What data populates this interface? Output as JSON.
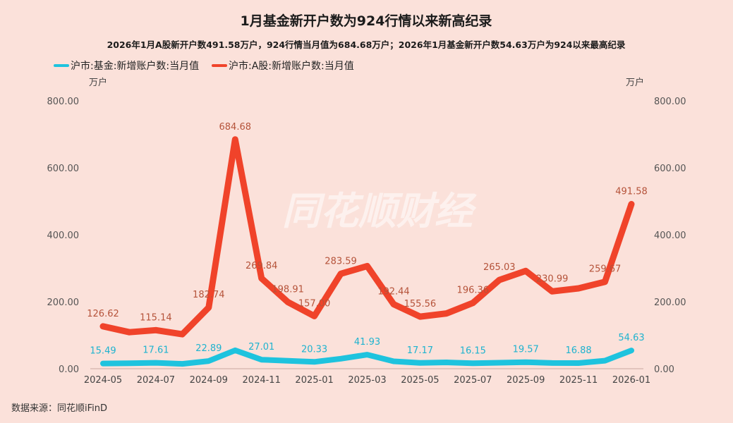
{
  "title": "1月基金新开户数为924行情以来新高纪录",
  "subtitle": "2026年1月A股新开户数491.58万户，924行情当月值为684.68万户；2026年1月基金新开户数54.63万户为924以来最高纪录",
  "units": {
    "left": "万户",
    "right": "万户"
  },
  "source": "数据来源：同花顺iFinD",
  "watermark": "同花顺财经",
  "colors": {
    "background": "#fbe1da",
    "fund": "#1ec3de",
    "ashare": "#f0432a",
    "fund_label": "#1eb3cf",
    "ashare_label": "#b5533a"
  },
  "chart_data": {
    "type": "line",
    "title": "1月基金新开户数为924行情以来新高纪录",
    "x": [
      "2024-05",
      "2024-06",
      "2024-07",
      "2024-08",
      "2024-09",
      "2024-10",
      "2024-11",
      "2024-12",
      "2025-01",
      "2025-02",
      "2025-03",
      "2025-04",
      "2025-05",
      "2025-06",
      "2025-07",
      "2025-08",
      "2025-09",
      "2025-10",
      "2025-11",
      "2025-12",
      "2026-01"
    ],
    "x_tick_labels": [
      "2024-05",
      "2024-07",
      "2024-09",
      "2024-11",
      "2025-01",
      "2025-03",
      "2025-05",
      "2025-07",
      "2025-09",
      "2025-11",
      "2026-01"
    ],
    "y_tick_labels": [
      "800.00",
      "600.00",
      "400.00",
      "200.00",
      "0.00"
    ],
    "ylim": [
      0,
      800
    ],
    "legend_position": "top-left",
    "series": [
      {
        "name": "沪市:基金:新增账户数:当月值",
        "color": "#1ec3de",
        "values": [
          15.49,
          16.5,
          17.61,
          14.5,
          22.89,
          55.0,
          27.01,
          23.5,
          20.33,
          30.0,
          41.93,
          22.0,
          17.17,
          19.0,
          16.15,
          18.0,
          19.57,
          17.0,
          16.88,
          24.0,
          54.63
        ],
        "data_labels": [
          {
            "i": 0,
            "text": "15.49"
          },
          {
            "i": 2,
            "text": "17.61"
          },
          {
            "i": 4,
            "text": "22.89"
          },
          {
            "i": 6,
            "text": "27.01"
          },
          {
            "i": 8,
            "text": "20.33"
          },
          {
            "i": 10,
            "text": "41.93"
          },
          {
            "i": 12,
            "text": "17.17"
          },
          {
            "i": 14,
            "text": "16.15"
          },
          {
            "i": 16,
            "text": "19.57"
          },
          {
            "i": 18,
            "text": "16.88"
          },
          {
            "i": 20,
            "text": "54.63"
          }
        ]
      },
      {
        "name": "沪市:A股:新增账户数:当月值",
        "color": "#f0432a",
        "values": [
          126.62,
          109.0,
          115.14,
          103.0,
          182.74,
          684.68,
          269.84,
          198.91,
          157.0,
          283.59,
          306.55,
          192.44,
          155.56,
          165.0,
          196.36,
          265.03,
          292.0,
          230.99,
          240.0,
          259.67,
          491.58
        ],
        "data_labels": [
          {
            "i": 0,
            "text": "126.62"
          },
          {
            "i": 2,
            "text": "115.14"
          },
          {
            "i": 4,
            "text": "182.74"
          },
          {
            "i": 5,
            "text": "684.68"
          },
          {
            "i": 6,
            "text": "269.84"
          },
          {
            "i": 7,
            "text": "198.91"
          },
          {
            "i": 8,
            "text": "157.00"
          },
          {
            "i": 9,
            "text": "283.59"
          },
          {
            "i": 11,
            "text": "192.44"
          },
          {
            "i": 12,
            "text": "155.56"
          },
          {
            "i": 14,
            "text": "196.36"
          },
          {
            "i": 15,
            "text": "265.03"
          },
          {
            "i": 17,
            "text": "230.99"
          },
          {
            "i": 19,
            "text": "259.67"
          },
          {
            "i": 20,
            "text": "491.58"
          }
        ]
      }
    ]
  }
}
